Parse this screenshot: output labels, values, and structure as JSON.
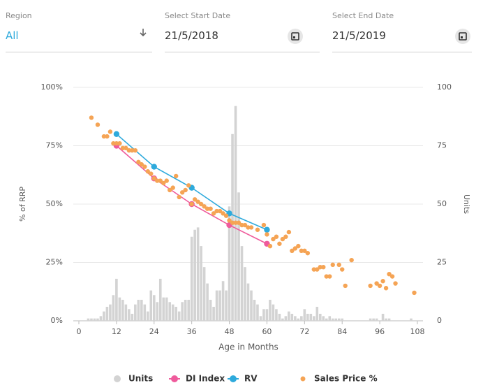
{
  "filters": [
    {
      "label": "Region",
      "value": "All"
    },
    {
      "label": "Select Start Date",
      "value": "21/5/2018"
    },
    {
      "label": "Select End Date",
      "value": "21/5/2019"
    }
  ],
  "chart_data": {
    "type": "combo",
    "x_label": "Age in Months",
    "y_label": "% of RRP",
    "y2_label": "Units",
    "xlim": [
      0,
      108
    ],
    "xticks": [
      0,
      12,
      24,
      36,
      48,
      60,
      72,
      84,
      96,
      108
    ],
    "ylim": [
      0,
      100
    ],
    "yticks": [
      {
        "value": 0,
        "label": "0%"
      },
      {
        "value": 25,
        "label": "25%"
      },
      {
        "value": 50,
        "label": "50%"
      },
      {
        "value": 75,
        "label": "75%"
      },
      {
        "value": 100,
        "label": "100%"
      }
    ],
    "y2lim": [
      0,
      100
    ],
    "y2ticks": [
      0,
      25,
      50,
      75,
      100
    ],
    "grid": true,
    "legend": "bottom",
    "series": [
      {
        "name": "Units",
        "type": "bar",
        "axis": "y2",
        "color": "#d3d3d3",
        "x": [
          3,
          4,
          5,
          6,
          7,
          8,
          9,
          10,
          11,
          12,
          13,
          14,
          15,
          16,
          17,
          18,
          19,
          20,
          21,
          22,
          23,
          24,
          25,
          26,
          27,
          28,
          29,
          30,
          31,
          32,
          33,
          34,
          35,
          36,
          37,
          38,
          39,
          40,
          41,
          42,
          43,
          44,
          45,
          46,
          47,
          48,
          49,
          50,
          51,
          52,
          53,
          54,
          55,
          56,
          57,
          58,
          59,
          60,
          61,
          62,
          63,
          64,
          65,
          66,
          67,
          68,
          69,
          70,
          71,
          72,
          73,
          74,
          75,
          76,
          77,
          78,
          79,
          80,
          81,
          82,
          83,
          84,
          93,
          94,
          95,
          97,
          98,
          99,
          106
        ],
        "values": [
          1,
          1,
          1,
          1,
          2,
          4,
          6,
          7,
          11,
          18,
          10,
          9,
          7,
          5,
          3,
          7,
          9,
          9,
          7,
          4,
          13,
          11,
          8,
          18,
          10,
          10,
          8,
          7,
          6,
          4,
          8,
          9,
          9,
          36,
          39,
          40,
          32,
          23,
          16,
          9,
          6,
          13,
          13,
          17,
          13,
          49,
          80,
          92,
          55,
          32,
          23,
          16,
          13,
          9,
          7,
          2,
          5,
          5,
          9,
          7,
          5,
          3,
          1,
          2,
          4,
          3,
          2,
          1,
          2,
          5,
          3,
          3,
          2,
          6,
          3,
          2,
          1,
          2,
          1,
          1,
          1,
          1,
          1,
          1,
          1,
          3,
          1,
          1,
          1
        ]
      },
      {
        "name": "DI Index",
        "type": "line",
        "color": "#ef5b9c",
        "x": [
          12,
          24,
          36,
          48,
          60
        ],
        "values": [
          75,
          61,
          50,
          41,
          33
        ]
      },
      {
        "name": "RV",
        "type": "line",
        "color": "#2eaadc",
        "x": [
          12,
          24,
          36,
          48,
          60
        ],
        "values": [
          80,
          66,
          57,
          46,
          39
        ]
      },
      {
        "name": "Sales Price %",
        "type": "scatter",
        "color": "#f5a455",
        "x": [
          4,
          6,
          8,
          9,
          10,
          11,
          12,
          13,
          14,
          15,
          16,
          17,
          18,
          19,
          20,
          21,
          22,
          23,
          24,
          25,
          26,
          27,
          28,
          29,
          30,
          31,
          32,
          33,
          34,
          35,
          36,
          37,
          38,
          39,
          40,
          41,
          42,
          43,
          44,
          45,
          46,
          47,
          48,
          49,
          50,
          51,
          52,
          53,
          54,
          55,
          57,
          59,
          60,
          61,
          62,
          63,
          64,
          65,
          66,
          67,
          68,
          69,
          70,
          71,
          72,
          73,
          75,
          76,
          77,
          78,
          79,
          80,
          81,
          83,
          84,
          85,
          87,
          93,
          95,
          96,
          97,
          98,
          99,
          100,
          101,
          107
        ],
        "values": [
          87,
          84,
          79,
          79,
          81,
          76,
          76,
          76,
          74,
          74,
          73,
          73,
          73,
          68,
          67,
          66,
          64,
          63,
          61,
          60,
          60,
          59,
          60,
          56,
          57,
          62,
          53,
          55,
          56,
          58,
          50,
          52,
          51,
          50,
          49,
          48,
          48,
          46,
          47,
          47,
          46,
          45,
          43,
          42,
          42,
          42,
          41,
          41,
          40,
          40,
          39,
          41,
          37,
          32,
          35,
          36,
          33,
          35,
          36,
          38,
          30,
          31,
          32,
          30,
          30,
          29,
          22,
          22,
          23,
          23,
          19,
          19,
          24,
          24,
          22,
          15,
          26,
          15,
          16,
          15,
          17,
          14,
          20,
          19,
          16,
          12
        ]
      }
    ]
  }
}
